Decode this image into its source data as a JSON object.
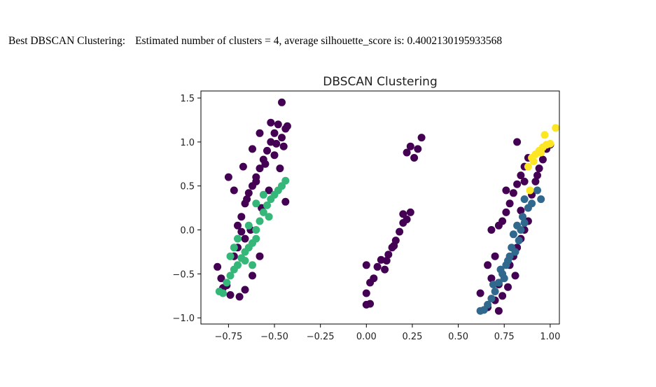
{
  "caption": {
    "prefix": "Best DBSCAN Clustering:",
    "text": "Estimated number of clusters = 4, average silhouette_score is: 0.4002130195933568"
  },
  "chart_data": {
    "type": "scatter",
    "title": "DBSCAN Clustering",
    "xlabel": "",
    "ylabel": "",
    "xlim": [
      -0.9,
      1.05
    ],
    "ylim": [
      -1.07,
      1.58
    ],
    "xticks": [
      -0.75,
      -0.5,
      -0.25,
      0.0,
      0.25,
      0.5,
      0.75,
      1.0
    ],
    "xtick_labels": [
      "−0.75",
      "−0.50",
      "−0.25",
      "0.00",
      "0.25",
      "0.50",
      "0.75",
      "1.00"
    ],
    "yticks": [
      -1.0,
      -0.5,
      0.0,
      0.5,
      1.0,
      1.5
    ],
    "ytick_labels": [
      "−1.0",
      "−0.5",
      "0.0",
      "0.5",
      "1.0",
      "1.5"
    ],
    "grid": false,
    "legend": "none",
    "series": [
      {
        "color": "#440154",
        "points": [
          [
            -0.81,
            -0.42
          ],
          [
            -0.79,
            -0.55
          ],
          [
            -0.76,
            -0.63
          ],
          [
            -0.74,
            -0.74
          ],
          [
            -0.72,
            -0.3
          ],
          [
            -0.7,
            -0.2
          ],
          [
            -0.68,
            -0.02
          ],
          [
            -0.7,
            0.05
          ],
          [
            -0.68,
            0.15
          ],
          [
            -0.66,
            0.3
          ],
          [
            -0.64,
            0.42
          ],
          [
            -0.62,
            0.5
          ],
          [
            -0.6,
            0.6
          ],
          [
            -0.58,
            0.7
          ],
          [
            -0.56,
            0.8
          ],
          [
            -0.54,
            0.9
          ],
          [
            -0.52,
            1.0
          ],
          [
            -0.5,
            1.1
          ],
          [
            -0.48,
            1.2
          ],
          [
            -0.46,
            1.05
          ],
          [
            -0.44,
            1.15
          ],
          [
            -0.45,
            0.95
          ],
          [
            -0.5,
            0.85
          ],
          [
            -0.55,
            0.75
          ],
          [
            -0.6,
            0.55
          ],
          [
            -0.65,
            0.35
          ],
          [
            -0.72,
            0.45
          ],
          [
            -0.75,
            0.6
          ],
          [
            -0.66,
            -0.1
          ],
          [
            -0.63,
            0.0
          ],
          [
            -0.57,
            0.25
          ],
          [
            -0.53,
            0.45
          ],
          [
            -0.47,
            0.7
          ],
          [
            -0.44,
            0.32
          ],
          [
            -0.46,
            1.45
          ],
          [
            -0.58,
            1.1
          ],
          [
            -0.62,
            0.92
          ],
          [
            -0.67,
            0.72
          ],
          [
            -0.52,
            1.22
          ],
          [
            -0.49,
            0.98
          ],
          [
            -0.43,
            1.18
          ],
          [
            -0.58,
            -0.3
          ],
          [
            -0.62,
            -0.52
          ],
          [
            -0.66,
            -0.68
          ],
          [
            -0.69,
            -0.76
          ],
          [
            -0.78,
            -0.66
          ],
          [
            0.0,
            -0.85
          ],
          [
            0.02,
            -0.84
          ],
          [
            0.0,
            -0.72
          ],
          [
            0.02,
            -0.6
          ],
          [
            0.04,
            -0.55
          ],
          [
            0.0,
            -0.4
          ],
          [
            0.06,
            -0.42
          ],
          [
            0.08,
            -0.34
          ],
          [
            0.1,
            -0.45
          ],
          [
            0.12,
            -0.28
          ],
          [
            0.14,
            -0.2
          ],
          [
            0.16,
            -0.12
          ],
          [
            0.18,
            -0.02
          ],
          [
            0.2,
            0.08
          ],
          [
            0.22,
            0.12
          ],
          [
            0.2,
            0.18
          ],
          [
            0.24,
            0.2
          ],
          [
            0.22,
            0.88
          ],
          [
            0.24,
            0.95
          ],
          [
            0.26,
            0.82
          ],
          [
            0.28,
            0.92
          ],
          [
            0.3,
            1.05
          ],
          [
            0.11,
            -0.35
          ],
          [
            0.15,
            -0.18
          ],
          [
            0.62,
            -0.72
          ],
          [
            0.66,
            -0.88
          ],
          [
            0.7,
            -0.8
          ],
          [
            0.72,
            -0.62
          ],
          [
            0.68,
            -0.55
          ],
          [
            0.66,
            -0.4
          ],
          [
            0.7,
            -0.3
          ],
          [
            0.68,
            0.0
          ],
          [
            0.72,
            0.05
          ],
          [
            0.74,
            0.1
          ],
          [
            0.76,
            0.2
          ],
          [
            0.78,
            0.3
          ],
          [
            0.8,
            0.42
          ],
          [
            0.82,
            0.52
          ],
          [
            0.84,
            0.62
          ],
          [
            0.86,
            0.72
          ],
          [
            0.88,
            0.82
          ],
          [
            0.78,
            -0.4
          ],
          [
            0.8,
            -0.3
          ],
          [
            0.82,
            -0.2
          ],
          [
            0.84,
            -0.1
          ],
          [
            0.86,
            0.0
          ],
          [
            0.88,
            0.1
          ],
          [
            0.84,
            0.22
          ],
          [
            0.9,
            0.4
          ],
          [
            0.92,
            0.55
          ],
          [
            0.94,
            0.7
          ],
          [
            0.96,
            0.8
          ],
          [
            0.98,
            0.92
          ],
          [
            1.0,
            0.97
          ],
          [
            0.82,
            1.0
          ],
          [
            0.86,
            0.55
          ],
          [
            0.76,
            0.45
          ],
          [
            0.74,
            -0.75
          ],
          [
            0.77,
            -0.65
          ],
          [
            0.81,
            -0.52
          ],
          [
            0.72,
            -0.92
          ],
          [
            0.93,
            0.62
          ]
        ]
      },
      {
        "color": "#31688e",
        "points": [
          [
            0.62,
            -0.92
          ],
          [
            0.64,
            -0.91
          ],
          [
            0.66,
            -0.85
          ],
          [
            0.68,
            -0.78
          ],
          [
            0.7,
            -0.7
          ],
          [
            0.72,
            -0.6
          ],
          [
            0.74,
            -0.5
          ],
          [
            0.76,
            -0.4
          ],
          [
            0.78,
            -0.3
          ],
          [
            0.73,
            -0.45
          ],
          [
            0.69,
            -0.62
          ],
          [
            0.75,
            -0.55
          ],
          [
            0.79,
            -0.2
          ],
          [
            0.8,
            -0.05
          ],
          [
            0.82,
            0.05
          ],
          [
            0.84,
            0.0
          ],
          [
            0.86,
            0.08
          ],
          [
            0.83,
            -0.12
          ],
          [
            0.85,
            0.15
          ],
          [
            0.88,
            0.25
          ],
          [
            0.86,
            0.35
          ],
          [
            0.9,
            0.3
          ],
          [
            0.95,
            0.35
          ],
          [
            0.93,
            0.45
          ],
          [
            0.77,
            -0.35
          ],
          [
            0.81,
            -0.25
          ]
        ]
      },
      {
        "color": "#35b779",
        "points": [
          [
            -0.8,
            -0.7
          ],
          [
            -0.78,
            -0.72
          ],
          [
            -0.76,
            -0.6
          ],
          [
            -0.74,
            -0.52
          ],
          [
            -0.72,
            -0.45
          ],
          [
            -0.7,
            -0.4
          ],
          [
            -0.68,
            -0.32
          ],
          [
            -0.66,
            -0.25
          ],
          [
            -0.64,
            -0.2
          ],
          [
            -0.62,
            -0.15
          ],
          [
            -0.6,
            -0.1
          ],
          [
            -0.72,
            -0.2
          ],
          [
            -0.7,
            -0.1
          ],
          [
            -0.66,
            -0.35
          ],
          [
            -0.74,
            -0.3
          ],
          [
            -0.62,
            -0.4
          ],
          [
            -0.6,
            0.0
          ],
          [
            -0.58,
            0.1
          ],
          [
            -0.56,
            0.2
          ],
          [
            -0.54,
            0.28
          ],
          [
            -0.52,
            0.35
          ],
          [
            -0.5,
            0.4
          ],
          [
            -0.48,
            0.45
          ],
          [
            -0.46,
            0.5
          ],
          [
            -0.44,
            0.56
          ],
          [
            -0.6,
            0.3
          ],
          [
            -0.56,
            0.4
          ],
          [
            -0.64,
            0.05
          ],
          [
            -0.53,
            0.15
          ]
        ]
      },
      {
        "color": "#fde725",
        "points": [
          [
            0.9,
            0.82
          ],
          [
            0.92,
            0.86
          ],
          [
            0.94,
            0.9
          ],
          [
            0.96,
            0.94
          ],
          [
            0.98,
            0.97
          ],
          [
            1.0,
            0.98
          ],
          [
            0.95,
            0.88
          ],
          [
            0.91,
            0.78
          ],
          [
            1.03,
            1.16
          ],
          [
            0.88,
            0.72
          ],
          [
            0.97,
            1.08
          ],
          [
            0.89,
            0.45
          ]
        ]
      }
    ]
  }
}
